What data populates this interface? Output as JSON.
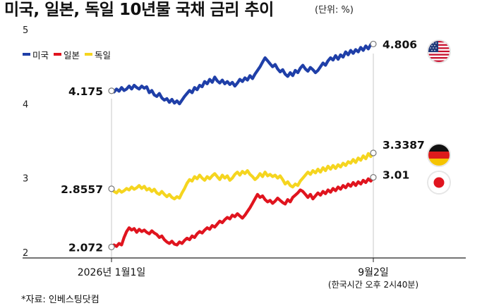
{
  "title": "미국, 일본, 독일 10년물 국채 금리 추이",
  "unit_label": "(단위: %)",
  "source": "*자료: 인베스팅닷컴",
  "colors": {
    "us": "#1f3fa8",
    "japan": "#e0141e",
    "germany": "#f5d51f",
    "axis": "#222222",
    "grid": "#cccccc"
  },
  "flags": [
    {
      "country": "us",
      "icon": "us-flag-icon"
    },
    {
      "country": "germany",
      "icon": "germany-flag-icon"
    },
    {
      "country": "japan",
      "icon": "japan-flag-icon"
    }
  ],
  "chart_data": {
    "type": "line",
    "title": "미국, 일본, 독일 10년물 국채 금리 추이",
    "ylabel": "",
    "xlabel": "",
    "ylim": [
      2,
      5
    ],
    "yticks": [
      "5",
      "4",
      "3",
      "2"
    ],
    "x_start_label": "2026년 1월1일",
    "x_end_label": "9월2일",
    "x_end_sublabel": "(한국시간 오후 2시40분)",
    "legend_position": "top-left",
    "grid": false,
    "series": [
      {
        "key": "us",
        "name": "미국",
        "color": "#1f3fa8",
        "start_value": 4.175,
        "end_value": 4.806,
        "start_label": "4.175",
        "end_label": "4.806",
        "values": [
          4.175,
          4.16,
          4.2,
          4.17,
          4.22,
          4.18,
          4.2,
          4.24,
          4.2,
          4.25,
          4.22,
          4.2,
          4.24,
          4.21,
          4.23,
          4.15,
          4.18,
          4.12,
          4.1,
          4.14,
          4.08,
          4.05,
          4.07,
          4.02,
          4.06,
          4.01,
          4.04,
          4.0,
          4.05,
          4.1,
          4.14,
          4.18,
          4.15,
          4.22,
          4.19,
          4.25,
          4.23,
          4.3,
          4.27,
          4.33,
          4.29,
          4.36,
          4.31,
          4.28,
          4.32,
          4.27,
          4.3,
          4.26,
          4.29,
          4.24,
          4.28,
          4.33,
          4.3,
          4.35,
          4.32,
          4.38,
          4.34,
          4.4,
          4.45,
          4.5,
          4.56,
          4.62,
          4.58,
          4.54,
          4.5,
          4.53,
          4.47,
          4.43,
          4.46,
          4.4,
          4.37,
          4.42,
          4.38,
          4.45,
          4.42,
          4.48,
          4.52,
          4.47,
          4.44,
          4.49,
          4.46,
          4.42,
          4.45,
          4.5,
          4.55,
          4.52,
          4.58,
          4.62,
          4.59,
          4.65,
          4.6,
          4.66,
          4.63,
          4.7,
          4.66,
          4.72,
          4.68,
          4.73,
          4.7,
          4.76,
          4.72,
          4.78,
          4.74,
          4.8,
          4.806
        ]
      },
      {
        "key": "germany",
        "name": "독일",
        "color": "#f5d51f",
        "start_value": 2.8557,
        "end_value": 3.3387,
        "start_label": "2.8557",
        "end_label": "3.3387",
        "values": [
          2.8557,
          2.82,
          2.8,
          2.84,
          2.81,
          2.83,
          2.86,
          2.84,
          2.88,
          2.85,
          2.87,
          2.9,
          2.86,
          2.89,
          2.84,
          2.86,
          2.82,
          2.85,
          2.8,
          2.78,
          2.82,
          2.78,
          2.75,
          2.78,
          2.74,
          2.72,
          2.75,
          2.73,
          2.8,
          2.86,
          2.93,
          2.98,
          2.96,
          3.02,
          2.99,
          3.04,
          3.0,
          2.97,
          3.02,
          2.99,
          3.03,
          3.06,
          3.02,
          2.98,
          3.04,
          3.0,
          3.03,
          2.97,
          3.0,
          3.05,
          3.08,
          3.04,
          3.09,
          3.06,
          3.1,
          3.05,
          3.02,
          2.98,
          3.01,
          3.06,
          3.02,
          3.08,
          3.03,
          3.05,
          3.02,
          3.04,
          3.0,
          3.03,
          2.98,
          2.92,
          2.95,
          2.9,
          2.88,
          2.92,
          2.9,
          2.96,
          3.0,
          3.04,
          3.08,
          3.05,
          3.1,
          3.07,
          3.12,
          3.08,
          3.14,
          3.1,
          3.16,
          3.12,
          3.17,
          3.13,
          3.18,
          3.15,
          3.2,
          3.17,
          3.22,
          3.2,
          3.25,
          3.21,
          3.27,
          3.24,
          3.3,
          3.26,
          3.33,
          3.29,
          3.3387
        ]
      },
      {
        "key": "japan",
        "name": "일본",
        "color": "#e0141e",
        "start_value": 2.072,
        "end_value": 3.01,
        "start_label": "2.072",
        "end_label": "3.01",
        "values": [
          2.072,
          2.1,
          2.08,
          2.12,
          2.1,
          2.2,
          2.28,
          2.33,
          2.3,
          2.32,
          2.27,
          2.31,
          2.28,
          2.3,
          2.27,
          2.25,
          2.29,
          2.26,
          2.24,
          2.2,
          2.22,
          2.17,
          2.14,
          2.12,
          2.15,
          2.11,
          2.1,
          2.14,
          2.12,
          2.16,
          2.19,
          2.17,
          2.22,
          2.2,
          2.25,
          2.28,
          2.26,
          2.3,
          2.33,
          2.31,
          2.36,
          2.34,
          2.38,
          2.42,
          2.4,
          2.44,
          2.47,
          2.45,
          2.5,
          2.48,
          2.52,
          2.49,
          2.46,
          2.5,
          2.55,
          2.6,
          2.66,
          2.72,
          2.78,
          2.74,
          2.76,
          2.71,
          2.68,
          2.7,
          2.66,
          2.69,
          2.73,
          2.7,
          2.67,
          2.65,
          2.71,
          2.68,
          2.74,
          2.77,
          2.8,
          2.84,
          2.82,
          2.78,
          2.74,
          2.78,
          2.72,
          2.76,
          2.8,
          2.77,
          2.82,
          2.79,
          2.84,
          2.81,
          2.86,
          2.83,
          2.88,
          2.85,
          2.9,
          2.87,
          2.92,
          2.89,
          2.94,
          2.9,
          2.95,
          2.92,
          2.97,
          2.94,
          2.99,
          2.96,
          3.01
        ]
      }
    ]
  }
}
